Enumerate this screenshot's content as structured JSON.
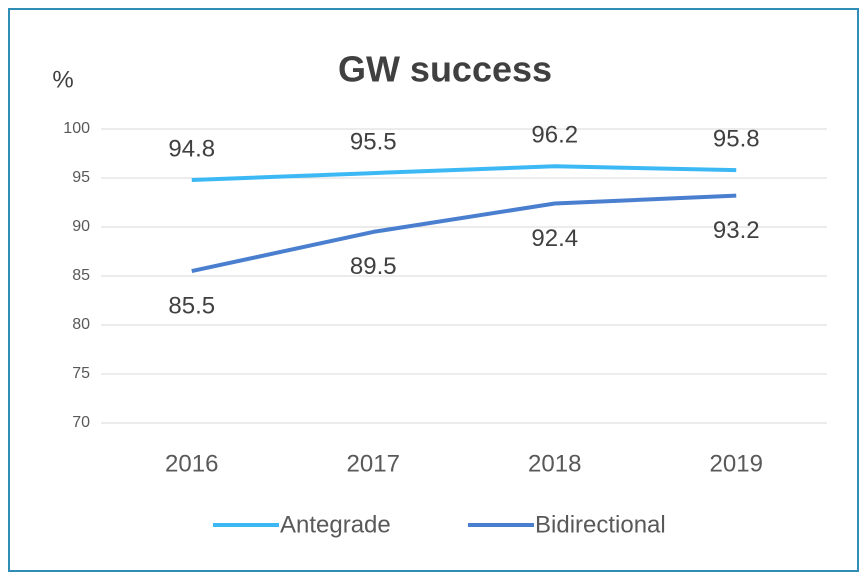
{
  "chart_data": {
    "type": "line",
    "title": "GW success",
    "y_axis_label": "%",
    "categories": [
      "2016",
      "2017",
      "2018",
      "2019"
    ],
    "series": [
      {
        "name": "Antegrade",
        "color": "#3cb9f4",
        "values": [
          94.8,
          95.5,
          96.2,
          95.8
        ]
      },
      {
        "name": "Bidirectional",
        "color": "#4a7fcf",
        "values": [
          85.5,
          89.5,
          92.4,
          93.2
        ]
      }
    ],
    "ylim": [
      70,
      100
    ],
    "yticks": [
      70,
      75,
      80,
      85,
      90,
      95,
      100
    ],
    "grid": true,
    "legend": "bottom"
  }
}
